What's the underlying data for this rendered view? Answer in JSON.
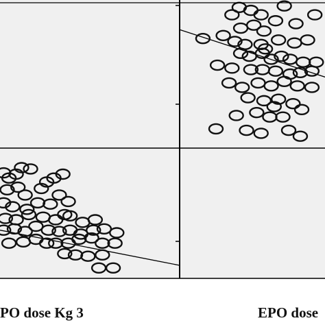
{
  "colors": {
    "background": "#ffffff",
    "panel_fill": "#f0f0f0",
    "empty_panel_fill": "#ffffff",
    "frame": "#000000",
    "marker_stroke": "#111111"
  },
  "panel_labels": {
    "left": "PO dose Kg 3",
    "right": "EPO dose"
  },
  "chart_data": [
    {
      "type": "scatter",
      "panel": "top-right",
      "marker": "open-circle",
      "grid": false,
      "xlim": [
        0,
        100
      ],
      "ylim": [
        0,
        100
      ],
      "points": [
        [
          36,
          90
        ],
        [
          41,
          95
        ],
        [
          49,
          93
        ],
        [
          56,
          90
        ],
        [
          72,
          96
        ],
        [
          93,
          90
        ],
        [
          42,
          81
        ],
        [
          51,
          83
        ],
        [
          58,
          79
        ],
        [
          66,
          86
        ],
        [
          80,
          84
        ],
        [
          16,
          74
        ],
        [
          30,
          76
        ],
        [
          38,
          72
        ],
        [
          45,
          70
        ],
        [
          56,
          70
        ],
        [
          68,
          73
        ],
        [
          79,
          71
        ],
        [
          88,
          73
        ],
        [
          42,
          64
        ],
        [
          48,
          62
        ],
        [
          57,
          64
        ],
        [
          63,
          60
        ],
        [
          70,
          62
        ],
        [
          76,
          60
        ],
        [
          85,
          58
        ],
        [
          94,
          58
        ],
        [
          26,
          56
        ],
        [
          36,
          54
        ],
        [
          49,
          53
        ],
        [
          57,
          53
        ],
        [
          66,
          52
        ],
        [
          76,
          50
        ],
        [
          83,
          51
        ],
        [
          34,
          44
        ],
        [
          43,
          41
        ],
        [
          54,
          44
        ],
        [
          63,
          42
        ],
        [
          72,
          45
        ],
        [
          81,
          42
        ],
        [
          91,
          41
        ],
        [
          47,
          34
        ],
        [
          58,
          32
        ],
        [
          68,
          33
        ],
        [
          78,
          30
        ],
        [
          84,
          26
        ],
        [
          39,
          22
        ],
        [
          53,
          24
        ],
        [
          62,
          21
        ],
        [
          71,
          21
        ],
        [
          46,
          12
        ],
        [
          56,
          10
        ],
        [
          75,
          12
        ],
        [
          83,
          8
        ],
        [
          25,
          13
        ],
        [
          59,
          67
        ],
        [
          91,
          52
        ],
        [
          65,
          28
        ]
      ],
      "fit_line": [
        [
          0,
          80
        ],
        [
          100,
          48
        ]
      ]
    },
    {
      "type": "scatter",
      "panel": "bottom-left",
      "marker": "open-circle",
      "grid": false,
      "xlim": [
        0,
        100
      ],
      "ylim": [
        0,
        100
      ],
      "points": [
        [
          2,
          81
        ],
        [
          5,
          77
        ],
        [
          9,
          80
        ],
        [
          12,
          85
        ],
        [
          17,
          84
        ],
        [
          26,
          74
        ],
        [
          30,
          77
        ],
        [
          35,
          80
        ],
        [
          4,
          68
        ],
        [
          10,
          70
        ],
        [
          14,
          64
        ],
        [
          23,
          69
        ],
        [
          2,
          58
        ],
        [
          7,
          55
        ],
        [
          15,
          53
        ],
        [
          21,
          58
        ],
        [
          28,
          57
        ],
        [
          33,
          64
        ],
        [
          38,
          59
        ],
        [
          3,
          46
        ],
        [
          9,
          45
        ],
        [
          16,
          49
        ],
        [
          24,
          47
        ],
        [
          31,
          45
        ],
        [
          36,
          49
        ],
        [
          46,
          43
        ],
        [
          53,
          45
        ],
        [
          2,
          37
        ],
        [
          8,
          38
        ],
        [
          14,
          36
        ],
        [
          20,
          40
        ],
        [
          27,
          37
        ],
        [
          33,
          36
        ],
        [
          39,
          37
        ],
        [
          45,
          34
        ],
        [
          52,
          37
        ],
        [
          58,
          38
        ],
        [
          65,
          35
        ],
        [
          5,
          27
        ],
        [
          13,
          28
        ],
        [
          20,
          30
        ],
        [
          26,
          27
        ],
        [
          31,
          27
        ],
        [
          38,
          27
        ],
        [
          44,
          30
        ],
        [
          51,
          31
        ],
        [
          57,
          27
        ],
        [
          64,
          27
        ],
        [
          36,
          19
        ],
        [
          42,
          18
        ],
        [
          49,
          17
        ],
        [
          57,
          18
        ],
        [
          55,
          8
        ],
        [
          63,
          8
        ],
        [
          39,
          48
        ]
      ],
      "fit_line": [
        [
          0,
          37
        ],
        [
          100,
          10
        ]
      ]
    }
  ]
}
